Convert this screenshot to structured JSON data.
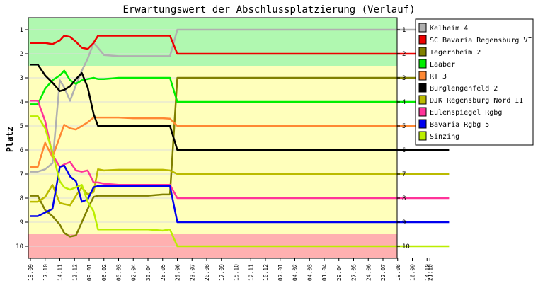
{
  "chart_data": {
    "type": "line",
    "title": "Erwartungswert der Abschlussplatzierung (Verlauf)",
    "ylabel": "Platz",
    "xlabel": "",
    "ylim": [
      10.5,
      0.5
    ],
    "y_ticks": [
      "1",
      "2",
      "3",
      "4",
      "5",
      "6",
      "7",
      "8",
      "9",
      "10"
    ],
    "zones": [
      {
        "from": 0.5,
        "to": 2.5,
        "color": "#b0f8b0"
      },
      {
        "from": 2.5,
        "to": 9.5,
        "color": "#ffffbb"
      },
      {
        "from": 9.5,
        "to": 10.5,
        "color": "#ffb0b0"
      }
    ],
    "x": [
      "19.09",
      "17.10",
      "14.11",
      "12.12",
      "09.01",
      "06.02",
      "05.03",
      "02.04",
      "30.04",
      "28.05",
      "25.06",
      "23.07",
      "20.08",
      "17.09",
      "15.10",
      "12.11",
      "10.12",
      "07.01",
      "04.02",
      "04.03",
      "01.04",
      "29.04",
      "27.05",
      "24.06",
      "22.07",
      "19.08",
      "16.09",
      "14.10",
      "21.10"
    ],
    "legend_position": "right",
    "series": [
      {
        "name": "Kelheim 4",
        "color": "#b0b0b0",
        "points": [
          [
            0,
            6.9
          ],
          [
            0.5,
            6.9
          ],
          [
            1,
            6.8
          ],
          [
            1.5,
            6.55
          ],
          [
            2,
            3.1
          ],
          [
            2.3,
            3.4
          ],
          [
            2.7,
            3.95
          ],
          [
            3.1,
            3.3
          ],
          [
            3.5,
            2.7
          ],
          [
            3.9,
            2.2
          ],
          [
            4.3,
            1.55
          ],
          [
            4.6,
            1.75
          ],
          [
            5,
            2.05
          ],
          [
            6,
            2.1
          ],
          [
            7,
            2.1
          ],
          [
            8,
            2.1
          ],
          [
            9,
            2.1
          ],
          [
            9.5,
            2.1
          ],
          [
            10,
            1.0
          ],
          [
            28.5,
            1.0
          ]
        ]
      },
      {
        "name": "SC Bavaria Regensburg VI",
        "color": "#ee0000",
        "points": [
          [
            0,
            1.55
          ],
          [
            0.5,
            1.55
          ],
          [
            1,
            1.55
          ],
          [
            1.5,
            1.6
          ],
          [
            2,
            1.45
          ],
          [
            2.3,
            1.25
          ],
          [
            2.7,
            1.3
          ],
          [
            3.1,
            1.5
          ],
          [
            3.5,
            1.75
          ],
          [
            3.9,
            1.8
          ],
          [
            4.3,
            1.55
          ],
          [
            4.6,
            1.25
          ],
          [
            5,
            1.25
          ],
          [
            6,
            1.25
          ],
          [
            7,
            1.25
          ],
          [
            8,
            1.25
          ],
          [
            9,
            1.25
          ],
          [
            9.5,
            1.25
          ],
          [
            10,
            2.0
          ],
          [
            28.5,
            2.0
          ]
        ]
      },
      {
        "name": "Tegernheim 2",
        "color": "#808000",
        "points": [
          [
            0,
            7.9
          ],
          [
            0.5,
            7.9
          ],
          [
            1,
            8.5
          ],
          [
            1.5,
            8.75
          ],
          [
            2,
            9.1
          ],
          [
            2.3,
            9.45
          ],
          [
            2.7,
            9.6
          ],
          [
            3.1,
            9.55
          ],
          [
            3.5,
            9.0
          ],
          [
            3.9,
            8.45
          ],
          [
            4.3,
            7.95
          ],
          [
            4.6,
            7.9
          ],
          [
            5,
            7.9
          ],
          [
            6,
            7.9
          ],
          [
            7,
            7.9
          ],
          [
            8,
            7.9
          ],
          [
            9,
            7.85
          ],
          [
            9.5,
            7.85
          ],
          [
            10,
            3.0
          ],
          [
            28.5,
            3.0
          ]
        ]
      },
      {
        "name": "Laaber",
        "color": "#00ee00",
        "points": [
          [
            0,
            4.1
          ],
          [
            0.5,
            4.1
          ],
          [
            1,
            3.45
          ],
          [
            1.5,
            3.1
          ],
          [
            2,
            2.9
          ],
          [
            2.3,
            2.7
          ],
          [
            2.7,
            3.1
          ],
          [
            3.1,
            3.25
          ],
          [
            3.5,
            3.1
          ],
          [
            3.9,
            3.05
          ],
          [
            4.3,
            3.0
          ],
          [
            4.6,
            3.05
          ],
          [
            5,
            3.05
          ],
          [
            6,
            3.0
          ],
          [
            7,
            3.0
          ],
          [
            8,
            3.0
          ],
          [
            9,
            3.0
          ],
          [
            9.5,
            3.0
          ],
          [
            10,
            4.0
          ],
          [
            28.5,
            4.0
          ]
        ]
      },
      {
        "name": "RT 3",
        "color": "#ff8833",
        "points": [
          [
            0,
            6.7
          ],
          [
            0.5,
            6.7
          ],
          [
            1,
            5.7
          ],
          [
            1.5,
            6.3
          ],
          [
            2,
            5.45
          ],
          [
            2.3,
            4.95
          ],
          [
            2.7,
            5.1
          ],
          [
            3.1,
            5.15
          ],
          [
            3.5,
            5.0
          ],
          [
            3.9,
            4.85
          ],
          [
            4.3,
            4.65
          ],
          [
            4.6,
            4.65
          ],
          [
            5,
            4.65
          ],
          [
            6,
            4.65
          ],
          [
            7,
            4.68
          ],
          [
            8,
            4.68
          ],
          [
            9,
            4.68
          ],
          [
            9.5,
            4.7
          ],
          [
            10,
            5.0
          ],
          [
            28.5,
            5.0
          ]
        ]
      },
      {
        "name": "Burglengenfeld 2",
        "color": "#000000",
        "points": [
          [
            0,
            2.45
          ],
          [
            0.5,
            2.45
          ],
          [
            1,
            2.9
          ],
          [
            1.5,
            3.2
          ],
          [
            2,
            3.55
          ],
          [
            2.3,
            3.5
          ],
          [
            2.7,
            3.35
          ],
          [
            3.1,
            3.05
          ],
          [
            3.5,
            2.8
          ],
          [
            3.9,
            3.4
          ],
          [
            4.3,
            4.5
          ],
          [
            4.6,
            5.0
          ],
          [
            5,
            5.0
          ],
          [
            6,
            5.0
          ],
          [
            7,
            5.0
          ],
          [
            8,
            5.0
          ],
          [
            9,
            5.0
          ],
          [
            9.5,
            5.0
          ],
          [
            10,
            6.0
          ],
          [
            28.5,
            6.0
          ]
        ]
      },
      {
        "name": "DJK Regensburg Nord II",
        "color": "#bbbb00",
        "points": [
          [
            0,
            8.15
          ],
          [
            0.5,
            8.15
          ],
          [
            1,
            7.95
          ],
          [
            1.5,
            7.45
          ],
          [
            2,
            8.2
          ],
          [
            2.3,
            8.25
          ],
          [
            2.7,
            8.3
          ],
          [
            3.1,
            7.9
          ],
          [
            3.5,
            7.55
          ],
          [
            3.9,
            7.85
          ],
          [
            4.3,
            7.75
          ],
          [
            4.6,
            6.8
          ],
          [
            5,
            6.85
          ],
          [
            6,
            6.82
          ],
          [
            7,
            6.82
          ],
          [
            8,
            6.82
          ],
          [
            9,
            6.82
          ],
          [
            9.5,
            6.85
          ],
          [
            10,
            7.0
          ],
          [
            28.5,
            7.0
          ]
        ]
      },
      {
        "name": "Eulenspiegel Rgbg",
        "color": "#ff3399",
        "points": [
          [
            0,
            3.95
          ],
          [
            0.5,
            3.95
          ],
          [
            1,
            4.8
          ],
          [
            1.5,
            6.2
          ],
          [
            2,
            6.7
          ],
          [
            2.3,
            6.6
          ],
          [
            2.7,
            6.5
          ],
          [
            3.1,
            6.85
          ],
          [
            3.5,
            6.9
          ],
          [
            3.9,
            6.85
          ],
          [
            4.3,
            7.35
          ],
          [
            4.6,
            7.35
          ],
          [
            5,
            7.4
          ],
          [
            6,
            7.45
          ],
          [
            7,
            7.45
          ],
          [
            8,
            7.45
          ],
          [
            9,
            7.45
          ],
          [
            9.5,
            7.45
          ],
          [
            10,
            8.0
          ],
          [
            28.5,
            8.0
          ]
        ]
      },
      {
        "name": "Bavaria Rgbg 5",
        "color": "#0000ee",
        "points": [
          [
            0,
            8.75
          ],
          [
            0.5,
            8.75
          ],
          [
            1,
            8.6
          ],
          [
            1.5,
            8.45
          ],
          [
            2,
            6.7
          ],
          [
            2.3,
            6.65
          ],
          [
            2.7,
            7.1
          ],
          [
            3.1,
            7.3
          ],
          [
            3.5,
            8.15
          ],
          [
            3.9,
            8.05
          ],
          [
            4.3,
            7.55
          ],
          [
            4.6,
            7.5
          ],
          [
            5,
            7.5
          ],
          [
            6,
            7.5
          ],
          [
            7,
            7.5
          ],
          [
            8,
            7.5
          ],
          [
            9,
            7.5
          ],
          [
            9.5,
            7.5
          ],
          [
            10,
            9.0
          ],
          [
            28.5,
            9.0
          ]
        ]
      },
      {
        "name": "Sinzing",
        "color": "#bbee00",
        "points": [
          [
            0,
            4.6
          ],
          [
            0.5,
            4.6
          ],
          [
            1,
            5.1
          ],
          [
            1.5,
            6.1
          ],
          [
            2,
            7.3
          ],
          [
            2.3,
            7.55
          ],
          [
            2.7,
            7.65
          ],
          [
            3.1,
            7.55
          ],
          [
            3.5,
            7.45
          ],
          [
            3.9,
            8.15
          ],
          [
            4.3,
            8.55
          ],
          [
            4.6,
            9.3
          ],
          [
            5,
            9.3
          ],
          [
            6,
            9.3
          ],
          [
            7,
            9.3
          ],
          [
            8,
            9.3
          ],
          [
            9,
            9.35
          ],
          [
            9.5,
            9.3
          ],
          [
            10,
            10.0
          ],
          [
            28.5,
            10.0
          ]
        ]
      }
    ]
  }
}
